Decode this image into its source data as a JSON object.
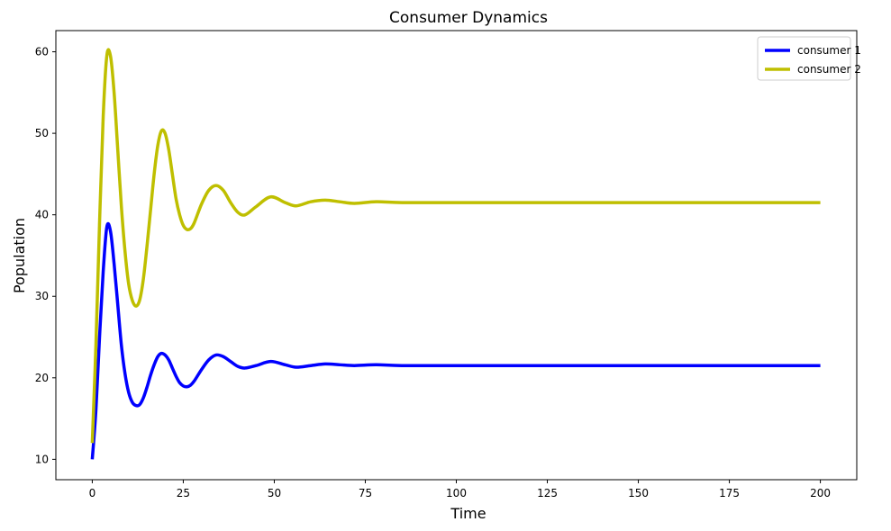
{
  "chart_data": {
    "type": "line",
    "title": "Consumer Dynamics",
    "xlabel": "Time",
    "ylabel": "Population",
    "xlim": [
      -10,
      210
    ],
    "ylim": [
      7.5,
      62.6
    ],
    "xticks": [
      0,
      25,
      50,
      75,
      100,
      125,
      150,
      175,
      200
    ],
    "yticks": [
      10,
      20,
      30,
      40,
      50,
      60
    ],
    "grid": false,
    "legend_position": "top-right",
    "series": [
      {
        "name": "consumer 1",
        "color": "#0000ff",
        "x": [
          0,
          1,
          2,
          3,
          4,
          5,
          6,
          7,
          8,
          9,
          10,
          11,
          12,
          13,
          14,
          15,
          16,
          17,
          18,
          19,
          20,
          21,
          22,
          23,
          24,
          25,
          26,
          27,
          28,
          30,
          32,
          34,
          36,
          38,
          40,
          42,
          45,
          49,
          53,
          56,
          60,
          64,
          68,
          72,
          78,
          85,
          100,
          150,
          200
        ],
        "y": [
          10,
          16,
          25,
          33,
          38.5,
          38,
          34,
          29,
          24,
          20.5,
          18.2,
          17,
          16.6,
          16.7,
          17.5,
          18.8,
          20.3,
          21.6,
          22.6,
          23,
          22.8,
          22.2,
          21.2,
          20.2,
          19.4,
          19,
          18.9,
          19.1,
          19.6,
          21,
          22.2,
          22.8,
          22.6,
          22,
          21.4,
          21.2,
          21.5,
          22,
          21.6,
          21.3,
          21.5,
          21.7,
          21.6,
          21.5,
          21.6,
          21.5,
          21.5,
          21.5,
          21.5
        ]
      },
      {
        "name": "consumer 2",
        "color": "#bfbf00",
        "x": [
          0,
          1,
          2,
          3,
          4,
          5,
          6,
          7,
          8,
          9,
          10,
          11,
          12,
          13,
          14,
          15,
          16,
          17,
          18,
          19,
          20,
          21,
          22,
          23,
          24,
          25,
          26,
          27,
          28,
          30,
          32,
          34,
          36,
          38,
          40,
          42,
          45,
          49,
          53,
          56,
          60,
          64,
          68,
          72,
          78,
          85,
          100,
          150,
          200
        ],
        "y": [
          12,
          24,
          39,
          52,
          59.5,
          59.5,
          55,
          48,
          41,
          35.5,
          31.5,
          29.5,
          28.8,
          29.5,
          32,
          36,
          40.5,
          45,
          48.5,
          50.3,
          50,
          48,
          45,
          42,
          40,
          38.7,
          38.2,
          38.3,
          39,
          41.3,
          43,
          43.6,
          43,
          41.5,
          40.3,
          40,
          41,
          42.2,
          41.5,
          41.1,
          41.6,
          41.8,
          41.6,
          41.4,
          41.6,
          41.5,
          41.5,
          41.5,
          41.5
        ]
      }
    ]
  }
}
